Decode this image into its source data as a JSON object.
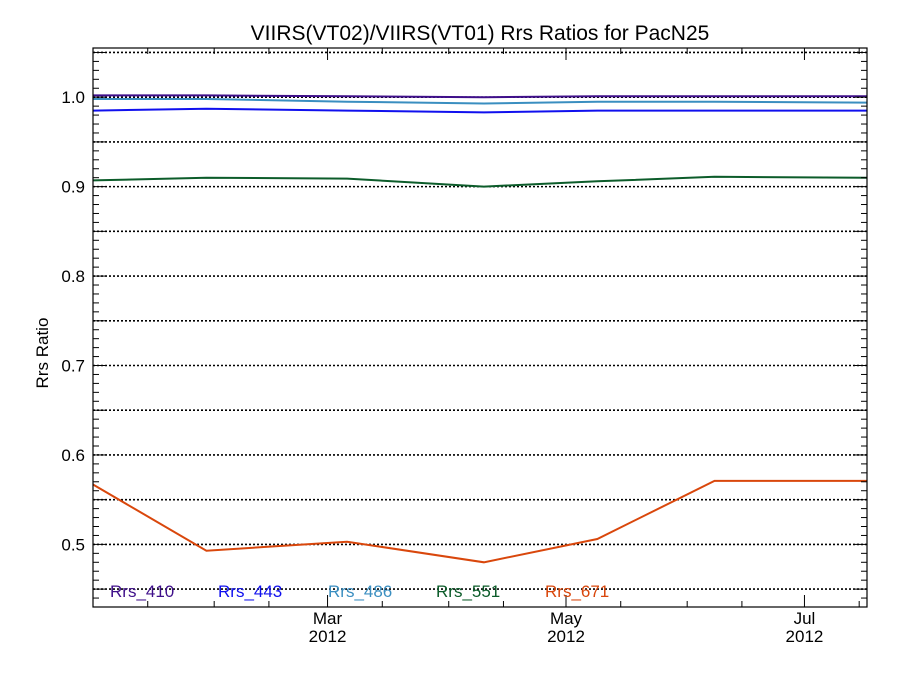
{
  "chart_data": {
    "type": "line",
    "title": "VIIRS(VT02)/VIIRS(VT01)  Rrs Ratios for PacN25",
    "ylabel": "Rrs Ratio",
    "xlabel": "",
    "ylim": [
      0.43,
      1.055
    ],
    "xlim": [
      "2012-01-01",
      "2012-07-17"
    ],
    "yticks": [
      0.5,
      0.6,
      0.7,
      0.8,
      0.9,
      1.0
    ],
    "ytick_labels": [
      "0.5",
      "0.6",
      "0.7",
      "0.8",
      "0.9",
      "1.0"
    ],
    "xticks": [
      {
        "date": "2012-03-01",
        "month": "Mar",
        "year": "2012"
      },
      {
        "date": "2012-05-01",
        "month": "May",
        "year": "2012"
      },
      {
        "date": "2012-07-01",
        "month": "Jul",
        "year": "2012"
      }
    ],
    "grid": true,
    "legend_position": "bottom-left",
    "x": [
      "2012-01-01",
      "2012-01-30",
      "2012-03-06",
      "2012-04-10",
      "2012-05-09",
      "2012-06-08",
      "2012-07-17"
    ],
    "series": [
      {
        "name": "Rrs_410",
        "color": "#3f0f8a",
        "values": [
          1.002,
          1.002,
          1.001,
          1.0,
          1.001,
          1.001,
          1.001
        ]
      },
      {
        "name": "Rrs_443",
        "color": "#1010ee",
        "values": [
          0.985,
          0.987,
          0.985,
          0.983,
          0.985,
          0.985,
          0.985
        ]
      },
      {
        "name": "Rrs_486",
        "color": "#3a8ec0",
        "values": [
          0.998,
          0.998,
          0.995,
          0.993,
          0.995,
          0.995,
          0.994
        ]
      },
      {
        "name": "Rrs_551",
        "color": "#0c5c2a",
        "values": [
          0.907,
          0.91,
          0.909,
          0.9,
          0.906,
          0.911,
          0.91
        ]
      },
      {
        "name": "Rrs_671",
        "color": "#d9470c",
        "values": [
          0.567,
          0.493,
          0.503,
          0.48,
          0.506,
          0.571,
          0.571
        ]
      }
    ]
  }
}
